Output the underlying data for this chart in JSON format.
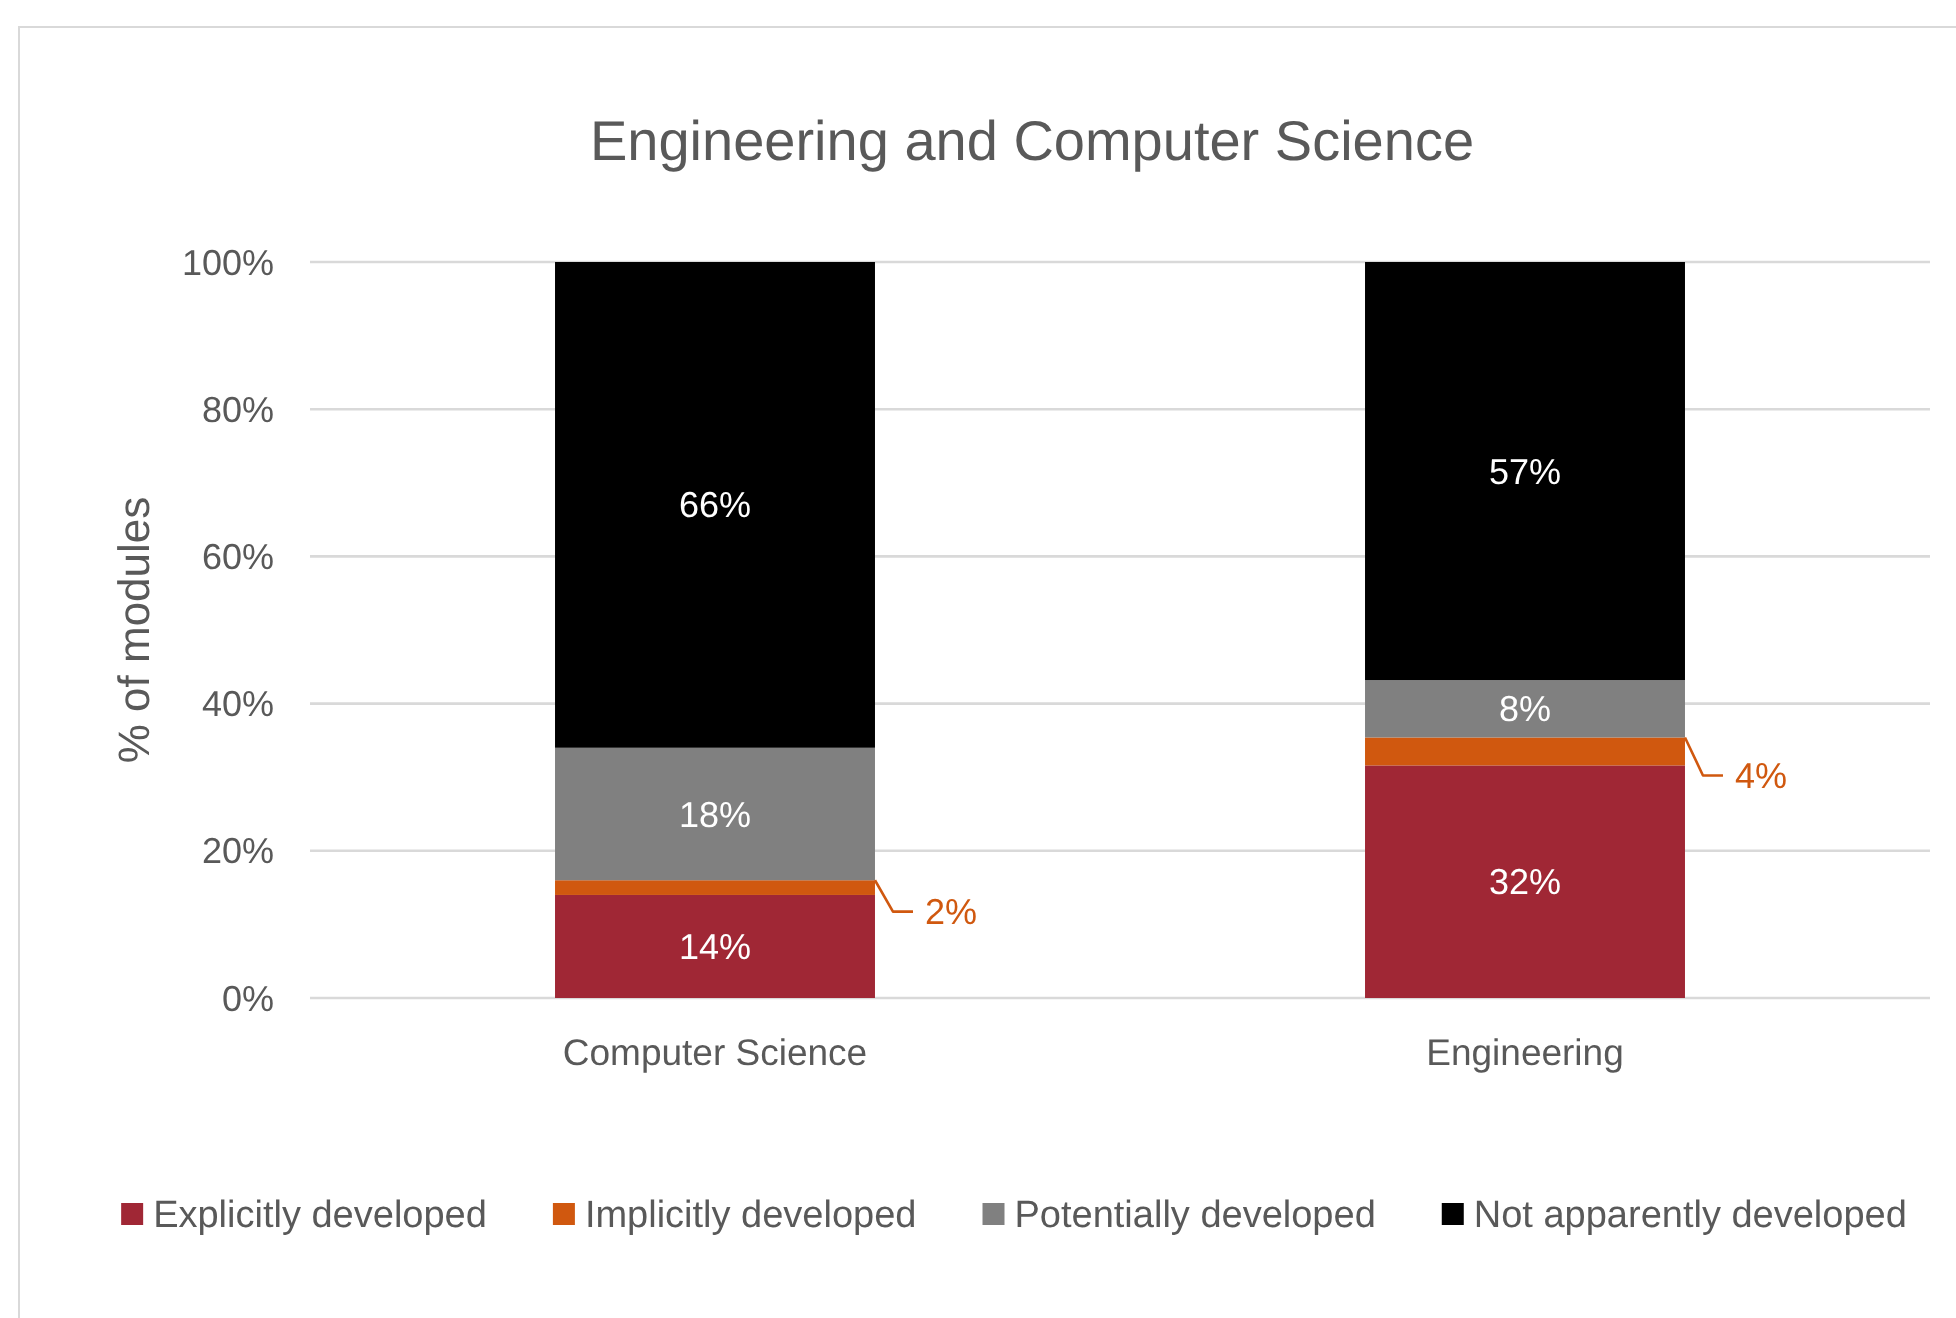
{
  "chart_data": {
    "type": "bar",
    "title": "Engineering and Computer Science",
    "ylabel": "% of modules",
    "categories": [
      "Computer Science",
      "Engineering"
    ],
    "stacked": true,
    "series": [
      {
        "name": "Explicitly developed",
        "color": "#a02735",
        "values": [
          14,
          31.6
        ],
        "value_labels": [
          "14%",
          "32%"
        ]
      },
      {
        "name": "Implicitly developed",
        "color": "#d0580f",
        "values": [
          2,
          3.8
        ],
        "value_labels": [
          "2%",
          "4%"
        ]
      },
      {
        "name": "Potentially developed",
        "color": "#808080",
        "values": [
          18,
          7.8
        ],
        "value_labels": [
          "18%",
          "8%"
        ]
      },
      {
        "name": "Not apparently developed",
        "color": "#000000",
        "values": [
          66,
          56.8
        ],
        "value_labels": [
          "66%",
          "57%"
        ]
      }
    ],
    "ylim": [
      0,
      100
    ],
    "yticks": [
      {
        "value": 0,
        "label": "0%"
      },
      {
        "value": 20,
        "label": "20%"
      },
      {
        "value": 40,
        "label": "40%"
      },
      {
        "value": 60,
        "label": "60%"
      },
      {
        "value": 80,
        "label": "80%"
      },
      {
        "value": 100,
        "label": "100%"
      }
    ],
    "grid": "y",
    "legend": "bottom"
  }
}
